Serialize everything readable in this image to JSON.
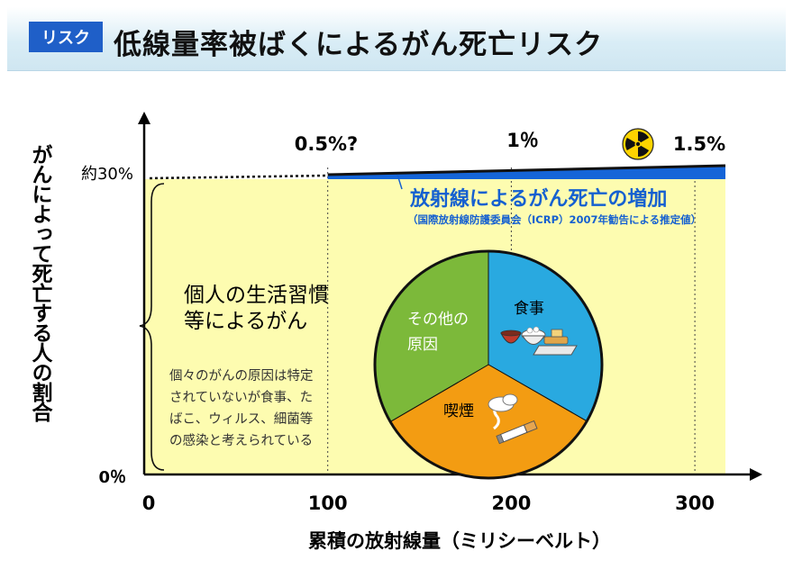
{
  "header": {
    "tag": "リスク",
    "title": "低線量率被ばくによるがん死亡リスク"
  },
  "chart_data": {
    "type": "area",
    "xlabel": "累積の放射線量（ミリシーベルト）",
    "ylabel": "がんによって死亡する人の割合",
    "x_ticks": [
      "0",
      "100",
      "200",
      "300"
    ],
    "y_ticks": [
      "0％",
      "約30%"
    ],
    "xlim": [
      0,
      340
    ],
    "baseline_percent": 30,
    "increase_labels": [
      {
        "x": 100,
        "text": "0.5%?"
      },
      {
        "x": 200,
        "text": "1％"
      },
      {
        "x": 300,
        "text": "1.5%"
      }
    ],
    "increase_title": "放射線によるがん死亡の増加",
    "increase_note": "（国際放射線防護委員会（ICRP）2007年勧告による推定値）",
    "lifestyle_label_line1": "個人の生活習慣",
    "lifestyle_label_line2": "等によるがん",
    "note_lines": [
      "個々のがんの原因は特定",
      "されていないが食事、た",
      "ばこ、ウィルス、細菌等",
      "の感染と考えられている"
    ],
    "pie": {
      "slices": [
        {
          "label": "食事",
          "share": 0.333,
          "color": "#29a9e0"
        },
        {
          "label": "喫煙",
          "share": 0.333,
          "color": "#f39c12"
        },
        {
          "label": "その他の原因",
          "label_line1": "その他の",
          "label_line2": "原因",
          "share": 0.334,
          "color": "#7cb93a"
        }
      ]
    },
    "colors": {
      "area": "#fdfcb0",
      "increase": "#1565d8",
      "increase_text": "#1560d0"
    }
  }
}
